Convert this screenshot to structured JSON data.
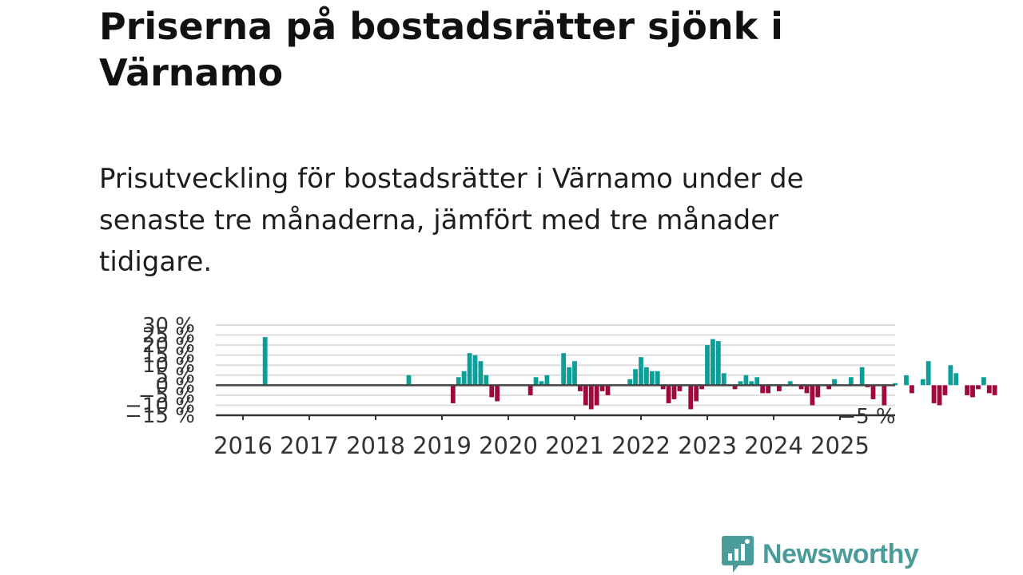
{
  "title": "Priserna på bostadsrätter sjönk i Värnamo",
  "subtitle": "Prisutveckling för bostadsrätter i Värnamo under de senaste tre månaderna, jämfört med tre månader tidigare.",
  "brand": {
    "name": "Newsworthy",
    "color": "#4a9c9b"
  },
  "colors": {
    "positive": "#0e9e9a",
    "negative": "#9e0a3d",
    "grid": "#dddddd",
    "zero_line": "#444444",
    "axis": "#333333"
  },
  "chart_data": {
    "type": "bar",
    "ylim": [
      -15,
      30
    ],
    "y_ticks": [
      {
        "value": 30,
        "label": "30 %"
      },
      {
        "value": 25,
        "label": "25 %"
      },
      {
        "value": 20,
        "label": "20 %"
      },
      {
        "value": 15,
        "label": "15 %"
      },
      {
        "value": 10,
        "label": "10 %"
      },
      {
        "value": 5,
        "label": "5 %"
      },
      {
        "value": 0,
        "label": "0 %"
      },
      {
        "value": -5,
        "label": "−5 %"
      },
      {
        "value": -10,
        "label": "−10 %"
      },
      {
        "value": -15,
        "label": "−15 %"
      }
    ],
    "x_ticks": [
      "2016",
      "2017",
      "2018",
      "2019",
      "2020",
      "2021",
      "2022",
      "2023",
      "2024",
      "2025"
    ],
    "annotation": "−5 %",
    "x_start": "2016-01",
    "values": [
      0,
      0,
      0,
      0,
      24,
      0,
      0,
      0,
      0,
      0,
      0,
      0,
      0,
      0,
      0,
      0,
      0,
      0,
      0,
      0,
      0,
      0,
      0,
      0,
      0,
      0,
      0,
      0,
      0,
      0,
      5,
      0,
      0,
      0,
      0,
      0,
      0,
      0,
      -9,
      4,
      7,
      16,
      15,
      12,
      5,
      -6,
      -8,
      0,
      0,
      0,
      0,
      0,
      -5,
      4,
      2,
      5,
      0,
      0,
      16,
      9,
      12,
      -3,
      -10,
      -12,
      -10,
      -3,
      -5,
      0,
      0,
      0,
      3,
      8,
      14,
      9,
      7,
      7,
      -2,
      -9,
      -7,
      -3,
      0,
      -12,
      -8,
      -2,
      20,
      23,
      22,
      6,
      0,
      -2,
      2,
      5,
      2,
      4,
      -4,
      -4,
      0,
      -3,
      0,
      2,
      0,
      -2,
      -4,
      -10,
      -6,
      0,
      -2,
      3,
      0,
      0,
      4,
      0,
      9,
      -1,
      -7,
      0,
      -10,
      0,
      1,
      0,
      5,
      -4,
      0,
      3,
      12,
      -9,
      -10,
      -5,
      10,
      6,
      0,
      -5,
      -6,
      -2,
      4,
      -4,
      -5
    ]
  }
}
